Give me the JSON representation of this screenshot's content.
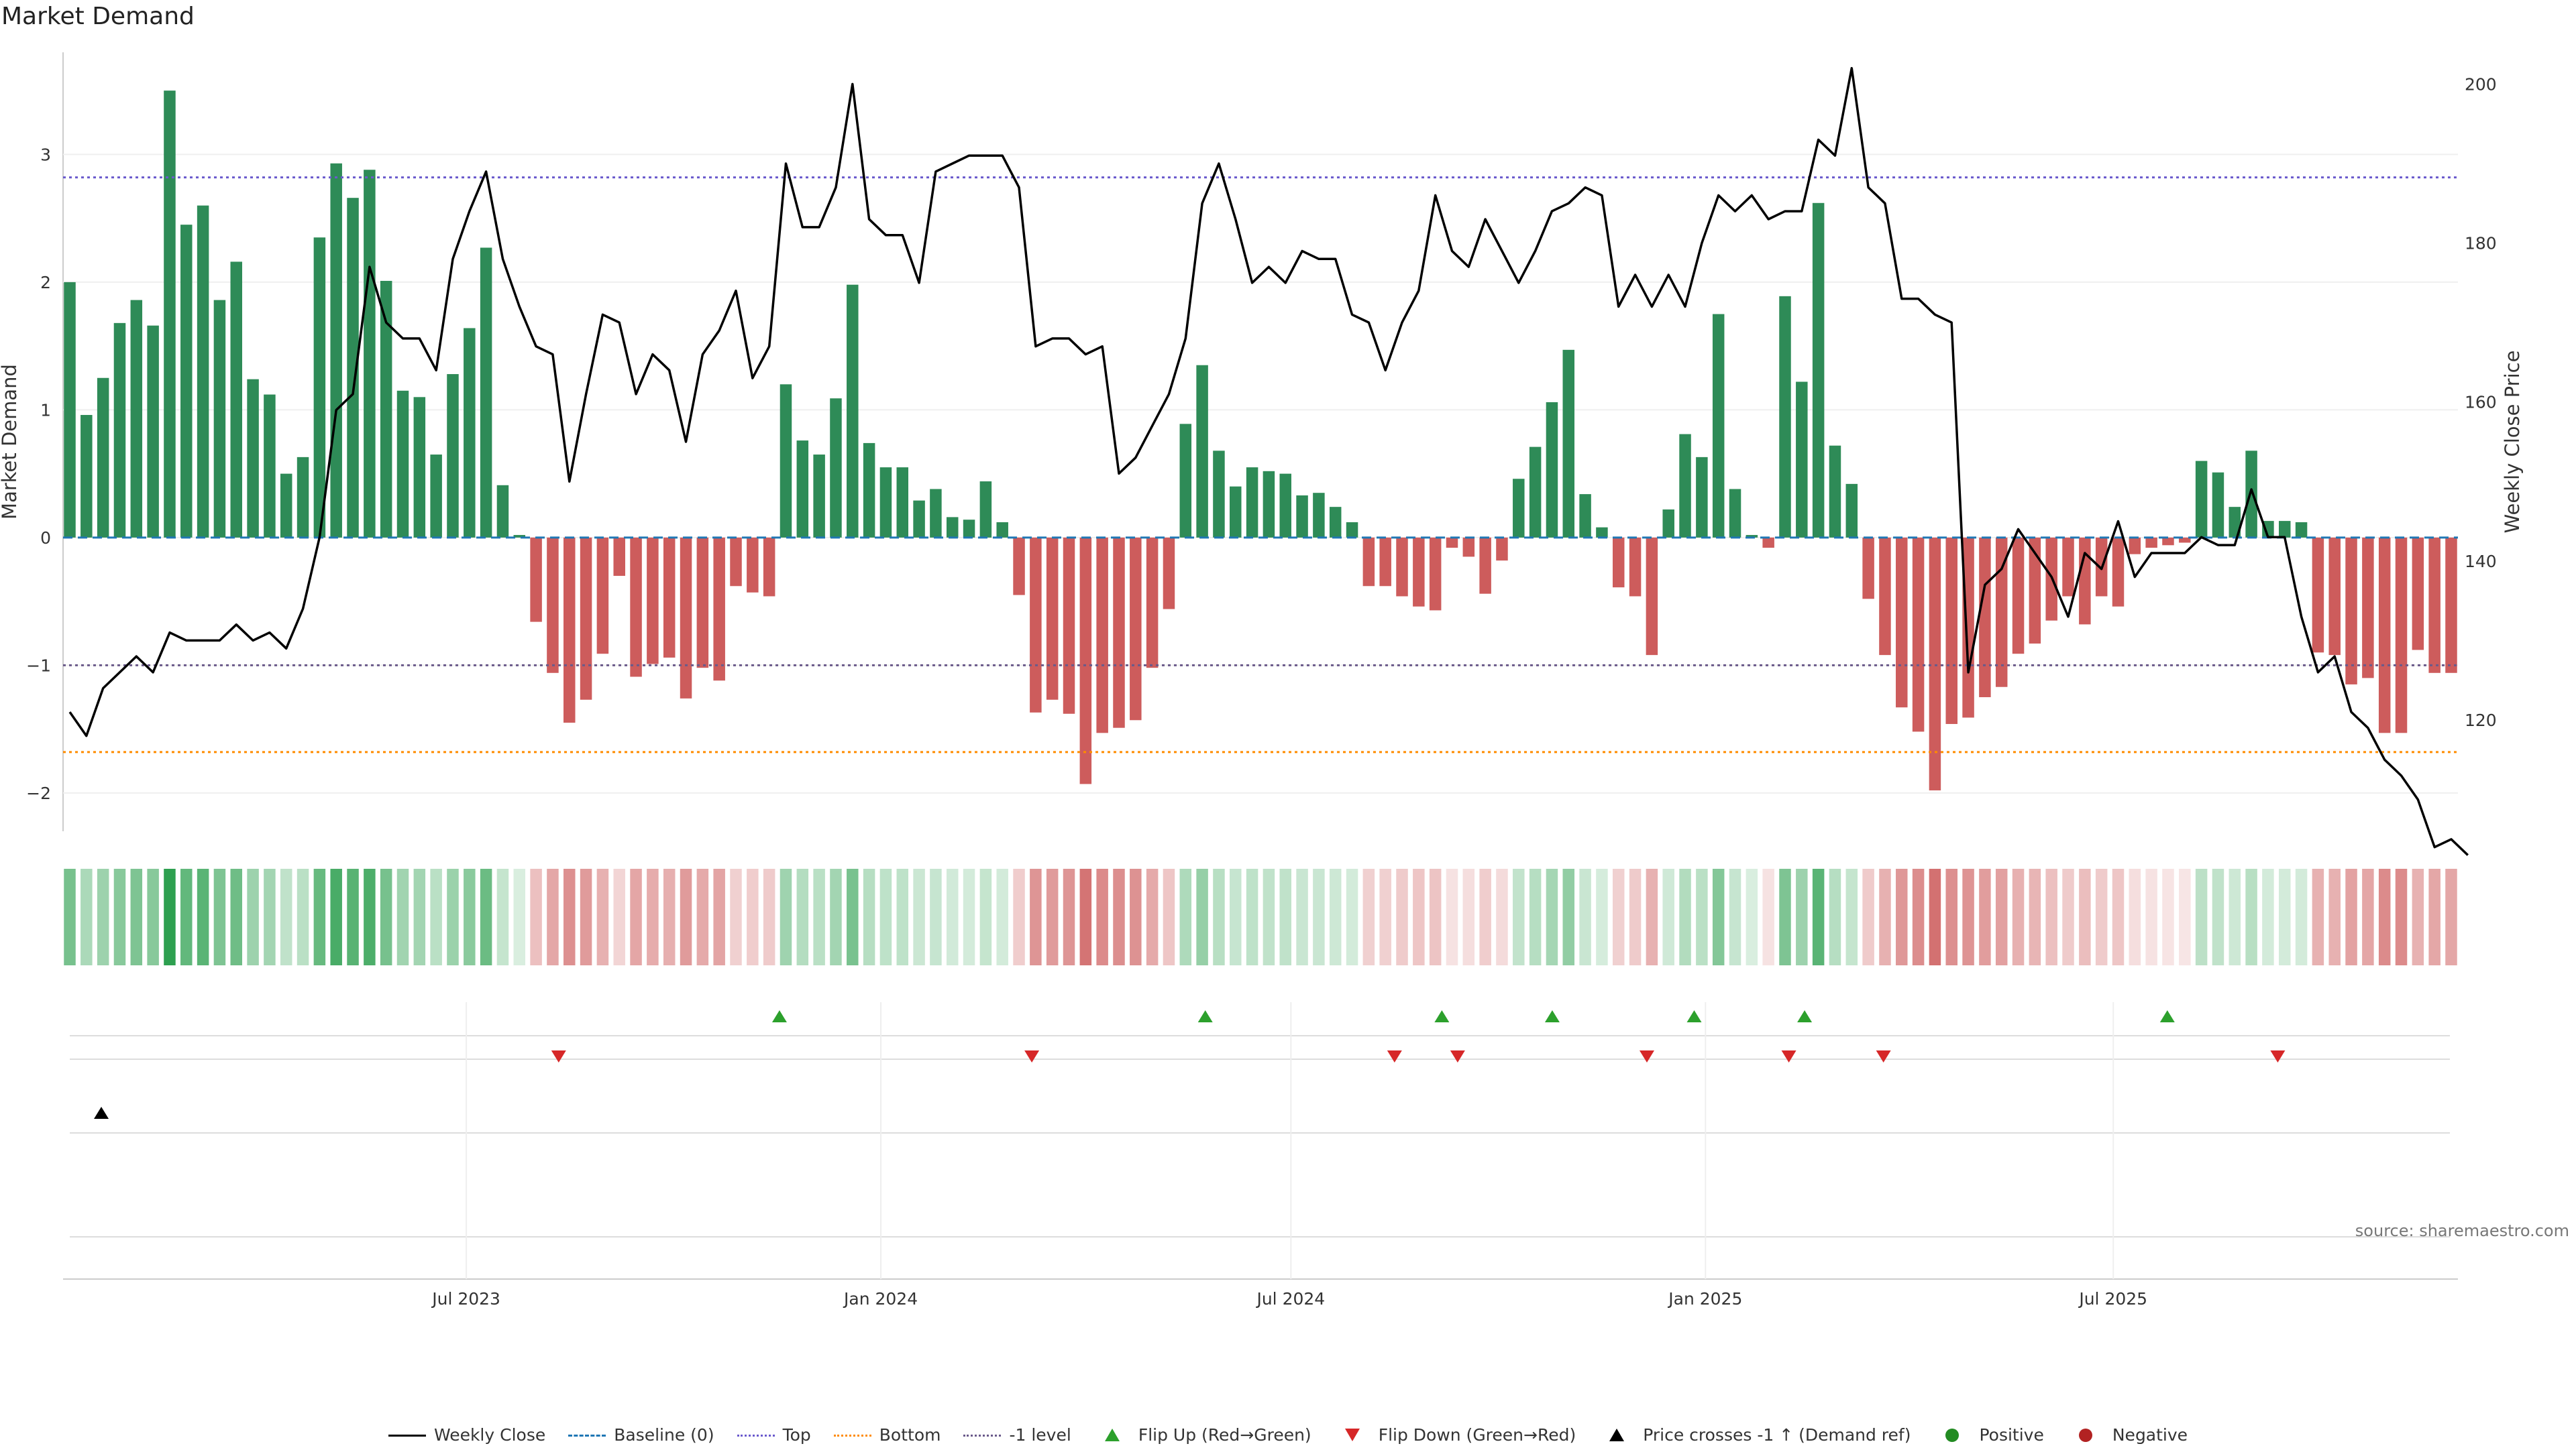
{
  "title": "Market Demand",
  "source": "source: sharemaestro.com",
  "colors": {
    "positive": "#2e8b57",
    "negative": "#cd5c5c",
    "price": "#000000",
    "baseline": "#1f77b4",
    "top": "#6a5acd",
    "bottom": "#ff8c00",
    "minus1": "#6a5a8a",
    "flip_up": "#2ca02c",
    "flip_down": "#d62728",
    "dot_positive": "#228b22",
    "dot_negative": "#b22222"
  },
  "legend": [
    {
      "label": "Weekly Close",
      "kind": "line",
      "color": "#000000",
      "dash": ""
    },
    {
      "label": "Baseline (0)",
      "kind": "line",
      "color": "#1f77b4",
      "dash": "14,8"
    },
    {
      "label": "Top",
      "kind": "line",
      "color": "#6a5acd",
      "dash": "4,5"
    },
    {
      "label": "Bottom",
      "kind": "line",
      "color": "#ff8c00",
      "dash": "4,5"
    },
    {
      "label": "-1 level",
      "kind": "line",
      "color": "#6a5a8a",
      "dash": "4,5"
    },
    {
      "label": "Flip Up (Red→Green)",
      "kind": "tri-up",
      "color": "#2ca02c"
    },
    {
      "label": "Flip Down (Green→Red)",
      "kind": "tri-down",
      "color": "#d62728"
    },
    {
      "label": "Price crosses -1 ↑ (Demand ref)",
      "kind": "tri-up",
      "color": "#000000"
    },
    {
      "label": "Positive",
      "kind": "dot",
      "color": "#228b22"
    },
    {
      "label": "Negative",
      "kind": "dot",
      "color": "#b22222"
    }
  ],
  "chart_data": {
    "type": "bar",
    "ylabel": "Market Demand",
    "y2label": "Weekly Close Price",
    "ylim": [
      -2.3,
      3.8
    ],
    "y2lim": [
      106,
      204
    ],
    "yticks": [
      -2,
      -1,
      0,
      1,
      2,
      3
    ],
    "yticklabels": [
      "−2",
      "−1",
      "0",
      "1",
      "2",
      "3"
    ],
    "y2ticks": [
      120,
      140,
      160,
      180,
      200
    ],
    "x_start": "2023-01-06",
    "x_end": "2025-11-28",
    "xticks": [
      {
        "date": "2023-07-01",
        "label": "Jul 2023"
      },
      {
        "date": "2024-01-01",
        "label": "Jan 2024"
      },
      {
        "date": "2024-07-01",
        "label": "Jul 2024"
      },
      {
        "date": "2025-01-01",
        "label": "Jan 2025"
      },
      {
        "date": "2025-07-01",
        "label": "Jul 2025"
      }
    ],
    "levels": {
      "top": 2.82,
      "bottom": -1.68,
      "minus1": -1.0,
      "baseline": 0
    },
    "grid": true,
    "legend_position": "bottom",
    "series": [
      {
        "name": "Market Demand",
        "values": [
          2.0,
          0.96,
          1.25,
          1.68,
          1.86,
          1.66,
          3.5,
          2.45,
          2.6,
          1.86,
          2.16,
          1.24,
          1.12,
          0.5,
          0.63,
          2.35,
          2.93,
          2.66,
          2.88,
          2.01,
          1.15,
          1.1,
          0.65,
          1.28,
          1.64,
          2.27,
          0.41,
          0.02,
          -0.66,
          -1.06,
          -1.45,
          -1.27,
          -0.91,
          -0.3,
          -1.09,
          -0.99,
          -0.94,
          -1.26,
          -1.02,
          -1.12,
          -0.38,
          -0.43,
          -0.46,
          1.2,
          0.76,
          0.65,
          1.09,
          1.98,
          0.74,
          0.55,
          0.55,
          0.29,
          0.38,
          0.16,
          0.14,
          0.44,
          0.12,
          -0.45,
          -1.37,
          -1.27,
          -1.38,
          -1.93,
          -1.53,
          -1.49,
          -1.43,
          -1.02,
          -0.56,
          0.89,
          1.35,
          0.68,
          0.4,
          0.55,
          0.52,
          0.5,
          0.33,
          0.35,
          0.24,
          0.12,
          -0.38,
          -0.38,
          -0.46,
          -0.54,
          -0.57,
          -0.08,
          -0.15,
          -0.44,
          -0.18,
          0.46,
          0.71,
          1.06,
          1.47,
          0.34,
          0.08,
          -0.39,
          -0.46,
          -0.92,
          0.22,
          0.81,
          0.63,
          1.75,
          0.38,
          0.02,
          -0.08,
          1.89,
          1.22,
          2.62,
          0.72,
          0.42,
          -0.48,
          -0.92,
          -1.33,
          -1.52,
          -1.98,
          -1.46,
          -1.41,
          -1.25,
          -1.17,
          -0.91,
          -0.83,
          -0.65,
          -0.46,
          -0.68,
          -0.46,
          -0.54,
          -0.13,
          -0.08,
          -0.06,
          -0.04,
          0.6,
          0.51,
          0.24,
          0.68,
          0.13,
          0.13,
          0.12,
          -0.9,
          -0.92,
          -1.15,
          -1.1,
          -1.53,
          -1.53,
          -0.88,
          -1.06,
          -1.06
        ]
      },
      {
        "name": "Weekly Close",
        "values": [
          121,
          118,
          124,
          126,
          128,
          126,
          131,
          130,
          130,
          130,
          132,
          130,
          131,
          129,
          134,
          143,
          159,
          161,
          177,
          170,
          168,
          168,
          164,
          178,
          184,
          189,
          178,
          172,
          167,
          166,
          150,
          161,
          171,
          170,
          161,
          166,
          164,
          155,
          166,
          169,
          174,
          163,
          167,
          190,
          182,
          182,
          187,
          200,
          183,
          181,
          181,
          175,
          189,
          190,
          191,
          191,
          191,
          187,
          167,
          168,
          168,
          166,
          167,
          151,
          153,
          157,
          161,
          168,
          185,
          190,
          183,
          175,
          177,
          175,
          179,
          178,
          178,
          171,
          170,
          164,
          170,
          174,
          186,
          179,
          177,
          183,
          179,
          175,
          179,
          184,
          185,
          187,
          186,
          172,
          176,
          172,
          176,
          172,
          180,
          186,
          184,
          186,
          183,
          184,
          184,
          193,
          191,
          202,
          187,
          185,
          173,
          173,
          171,
          170,
          126,
          137,
          139,
          144,
          141,
          138,
          133,
          141,
          139,
          145,
          138,
          141,
          141,
          141,
          143,
          142,
          142,
          149,
          143,
          143,
          133,
          126,
          128,
          121,
          119,
          115,
          113,
          110,
          104,
          105,
          103
        ]
      }
    ],
    "heat_strip": "weekly Market Demand intensity",
    "events": {
      "flip_up_dates": [
        "2023-11-17",
        "2024-05-24",
        "2024-09-06",
        "2024-10-25",
        "2024-12-27",
        "2025-02-14",
        "2025-07-25"
      ],
      "flip_down_dates": [
        "2023-08-11",
        "2024-03-08",
        "2024-08-16",
        "2024-09-13",
        "2024-12-06",
        "2025-02-07",
        "2025-03-21",
        "2025-09-12"
      ],
      "price_cross_dates": [
        "2023-01-20"
      ],
      "positive_dates": [],
      "negative_dates": []
    }
  }
}
